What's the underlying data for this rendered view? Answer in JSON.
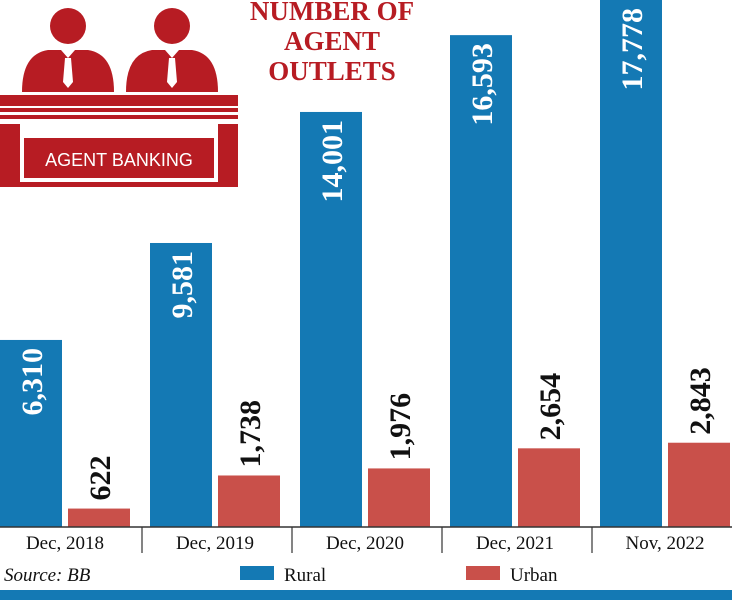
{
  "title_lines": [
    "NUMBER OF",
    "AGENT",
    "OUTLETS"
  ],
  "logo_text": "AGENT BANKING",
  "source": "Source: BB",
  "colors": {
    "rural": "#1479b4",
    "urban": "#c9504a",
    "title": "#b71c23",
    "logo": "#b71c23",
    "rule": "#1479b4"
  },
  "chart_data": {
    "type": "bar",
    "categories": [
      "Dec, 2018",
      "Dec, 2019",
      "Dec, 2020",
      "Dec, 2021",
      "Nov, 2022"
    ],
    "series": [
      {
        "name": "Rural",
        "values": [
          6310,
          9581,
          14001,
          16593,
          17778
        ],
        "labels": [
          "6,310",
          "9,581",
          "14,001",
          "16,593",
          "17,778"
        ]
      },
      {
        "name": "Urban",
        "values": [
          622,
          1738,
          1976,
          2654,
          2843
        ],
        "labels": [
          "622",
          "1,738",
          "1,976",
          "2,654",
          "2,843"
        ]
      }
    ],
    "legend_position": "bottom",
    "grid": false
  }
}
